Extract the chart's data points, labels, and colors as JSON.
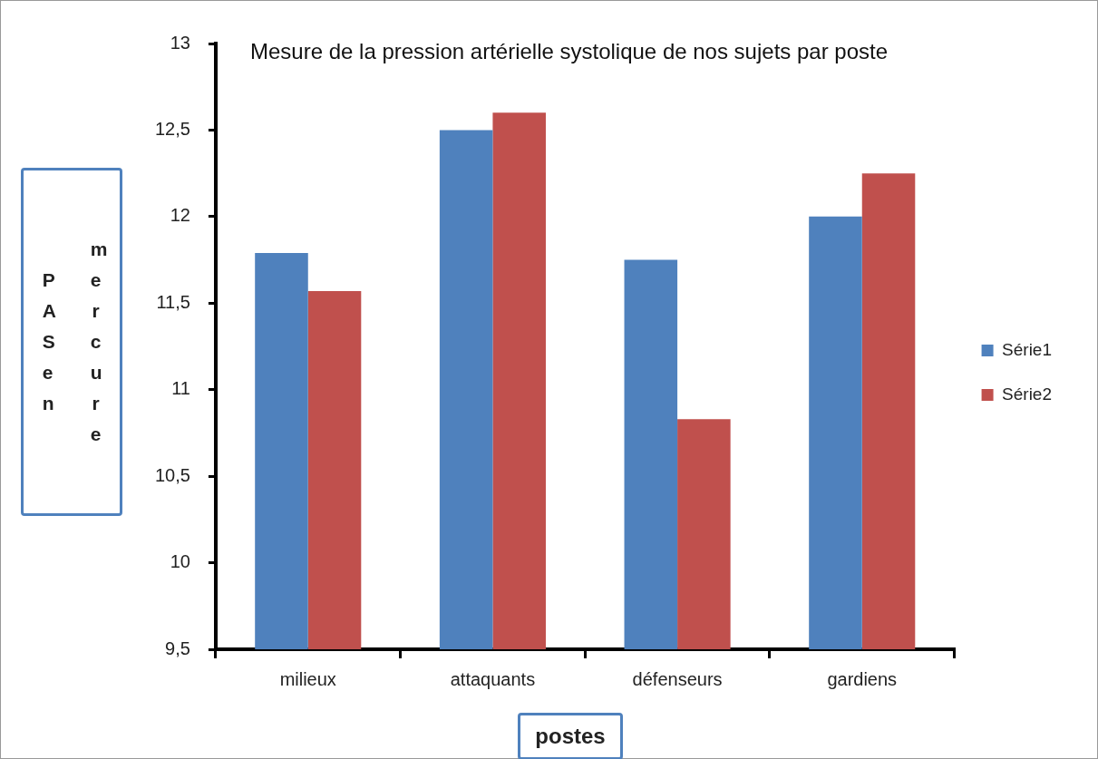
{
  "chart_data": {
    "type": "bar",
    "title": "Mesure de la pression artérielle systolique de nos sujets par poste",
    "xlabel": "postes",
    "ylabel": "PAS en mercure",
    "categories": [
      "milieux",
      "attaquants",
      "défenseurs",
      "gardiens"
    ],
    "series": [
      {
        "name": "Série1",
        "color": "#4f81bd",
        "values": [
          11.79,
          12.5,
          11.75,
          12.0
        ]
      },
      {
        "name": "Série2",
        "color": "#c0504d",
        "values": [
          11.57,
          12.6,
          10.83,
          12.25
        ]
      }
    ],
    "ylim": [
      9.5,
      13
    ],
    "yticks": [
      {
        "value": 9.5,
        "label": "9,5"
      },
      {
        "value": 10,
        "label": "10"
      },
      {
        "value": 10.5,
        "label": "10,5"
      },
      {
        "value": 11,
        "label": "11"
      },
      {
        "value": 11.5,
        "label": "11,5"
      },
      {
        "value": 12,
        "label": "12"
      },
      {
        "value": 12.5,
        "label": "12,5"
      },
      {
        "value": 13,
        "label": "13"
      }
    ],
    "grid": false,
    "legend": "right"
  }
}
